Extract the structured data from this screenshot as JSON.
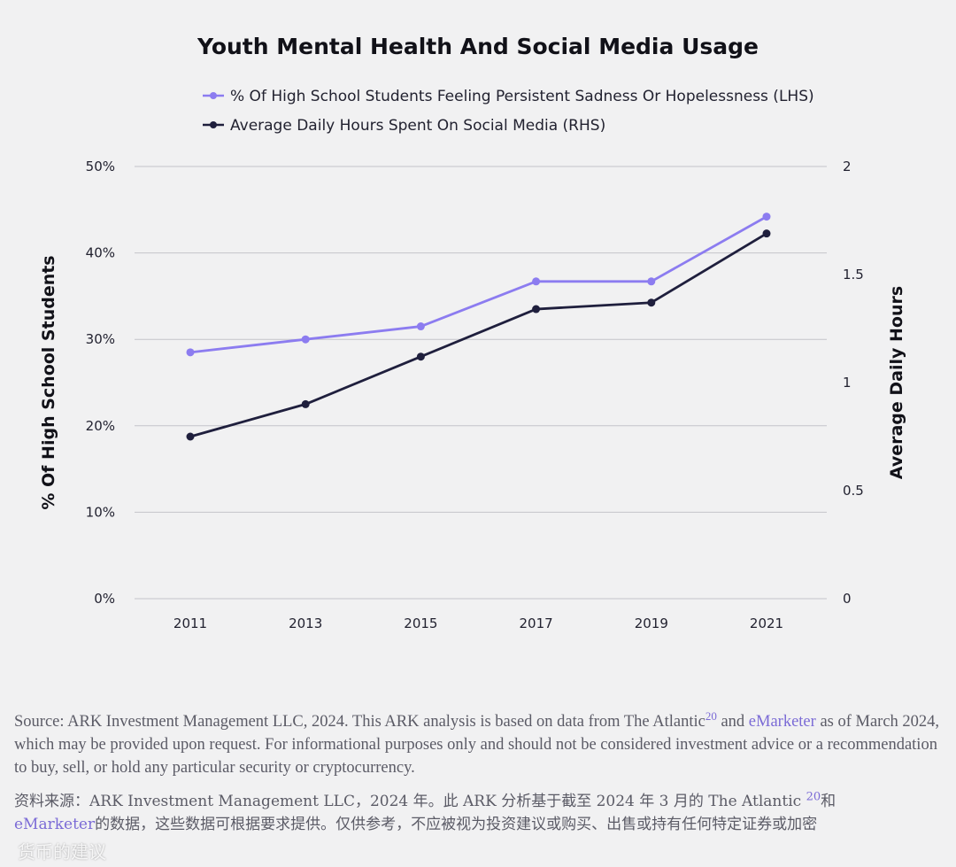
{
  "chart_data": {
    "type": "line",
    "title": "Youth Mental Health And Social Media Usage",
    "categories": [
      "2011",
      "2013",
      "2015",
      "2017",
      "2019",
      "2021"
    ],
    "series": [
      {
        "name": "% Of High School Students Feeling Persistent Sadness Or Hopelessness (LHS)",
        "axis": "left",
        "color": "#8c7cf0",
        "values": [
          28.5,
          30.0,
          31.5,
          36.7,
          36.7,
          44.2
        ]
      },
      {
        "name": "Average Daily Hours Spent On Social Media (RHS)",
        "axis": "right",
        "color": "#1f1f3d",
        "values": [
          0.75,
          0.9,
          1.12,
          1.34,
          1.37,
          1.69
        ]
      }
    ],
    "ylabel_left": "% Of High School Students",
    "ylabel_right": "Average Daily Hours",
    "ylim_left": [
      0,
      50
    ],
    "ylim_right": [
      0,
      2
    ],
    "yticks_left": [
      "0%",
      "10%",
      "20%",
      "30%",
      "40%",
      "50%"
    ],
    "yticks_right": [
      "0",
      "0.5",
      "1",
      "1.5",
      "2"
    ],
    "grid": true,
    "legend_position": "top"
  },
  "source": {
    "en_prefix": "Source: ARK Investment Management LLC, 2024. This ARK analysis is based on data from The Atlantic",
    "en_ref": "20",
    "en_and": " and ",
    "en_link": "eMarketer",
    "en_suffix": " as of March 2024, which may be provided upon request. For informational purposes only and should not be considered investment advice or a recommendation to buy, sell, or hold any particular security or cryptocurrency.",
    "zh_prefix": "资料来源：ARK Investment Management LLC，2024 年。此 ARK 分析基于截至 2024 年 3 月的 The Atlantic ",
    "zh_ref": "20",
    "zh_and": "和",
    "zh_link": "eMarketer",
    "zh_suffix": "的数据，这些数据可根据要求提供。仅供参考，不应被视为投资建议或购买、出售或持有任何特定证券或加密"
  },
  "watermark": "货币的建议"
}
